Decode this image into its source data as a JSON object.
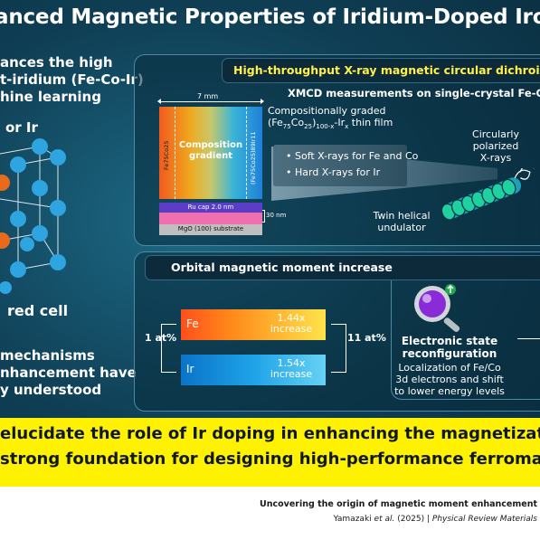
{
  "title": "anced Magnetic Properties of Iridium-Doped Iron-",
  "left": {
    "intro_line1": "ances the high",
    "intro_line2": "t-iridium (Fe-Co-Ir)",
    "intro_line3": "hine learning",
    "dopant_label": "or Ir",
    "cell_label": "red cell",
    "mech_line1": "mechanisms",
    "mech_line2": "nhancement have",
    "mech_line3": "y understood"
  },
  "panel1": {
    "header": "High-throughput X-ray magnetic circular dichroism",
    "subtitle": "XMCD measurements on single-crystal Fe-Co-Ir",
    "width_label": "7 mm",
    "gradient_label_line1": "Composition",
    "gradient_label_line2": "gradient",
    "left_composition": "Fe75Co25",
    "right_composition": "(Fe75Co25)89Ir11",
    "ru_cap": "Ru cap 2.0 nm",
    "substrate": "MgO (100) substrate",
    "thickness": "30 nm",
    "film_line1": "Compositionally graded",
    "film_formula_a": "(Fe",
    "film_formula_a_sub": "75",
    "film_formula_b": "Co",
    "film_formula_b_sub": "25",
    "film_formula_c": ")",
    "film_formula_c_sub": "100-x",
    "film_formula_d": "-Ir",
    "film_formula_d_sub": "x",
    "film_formula_e": " thin film",
    "xray_soft": "• Soft X-rays for Fe and Co",
    "xray_hard": "• Hard X-rays for Ir",
    "polarized_line1": "Circularly",
    "polarized_line2": "polarized",
    "polarized_line3": "X-rays",
    "undulator_line1": "Twin helical",
    "undulator_line2": "undulator"
  },
  "panel2": {
    "header": "Orbital magnetic moment increase",
    "fe_label": "Fe",
    "fe_value_line1": "1.44x",
    "fe_value_line2": "increase",
    "ir_label": "Ir",
    "ir_value_line1": "1.54x",
    "ir_value_line2": "increase",
    "left_at": "1 at%",
    "right_at": "11 at%",
    "esr_line1": "Electronic state",
    "esr_line2": "reconfiguration",
    "esr_desc_line1": "Localization of Fe/Co",
    "esr_desc_line2": "3d electrons and shift",
    "esr_desc_line3": "to lower energy levels"
  },
  "banner": {
    "line1": "elucidate the role of Ir doping in enhancing the magnetization of",
    "line2": "strong foundation for designing high-performance ferromagnetic"
  },
  "footer": {
    "title": "Uncovering the origin of magnetic moment enhancement",
    "author": "Yamazaki ",
    "etal": "et al.",
    "year_sep": " (2025)  |  ",
    "journal": "Physical Review Materials"
  },
  "colors": {
    "background": "#0f3f55",
    "title_yellow": "#fff04a",
    "banner": "#fff200",
    "fe_gradient_start": "#ff4f1a",
    "ir_gradient_start": "#0a74c8"
  }
}
